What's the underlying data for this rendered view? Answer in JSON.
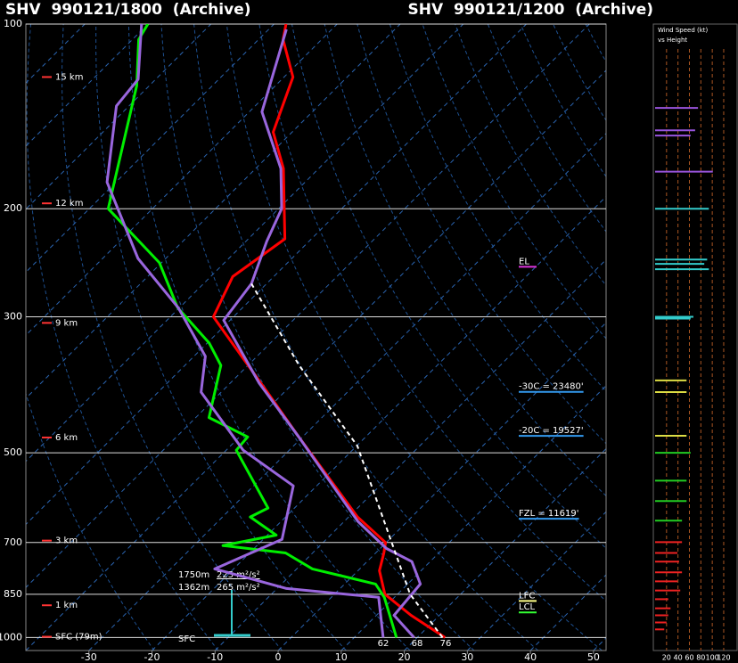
{
  "chart_data": {
    "type": "skewt",
    "title": "SHV  990121/1800  (Archive)",
    "subtitle": "SHV  990121/1200  (Archive)",
    "title_color": "#ffffff",
    "subtitle_color": "#9966dd",
    "xlim": [
      -40,
      52
    ],
    "xticks": [
      -30,
      -20,
      -10,
      0,
      10,
      20,
      30,
      40,
      50
    ],
    "ylim": [
      1050,
      100
    ],
    "yticks": [
      100,
      200,
      300,
      500,
      700,
      850,
      1000
    ],
    "log_scale": true,
    "grid": true,
    "series": [
      {
        "color": "#ff0000",
        "width": 3,
        "pressure": [
          1000,
          920,
          850,
          778,
          728,
          700,
          636,
          471,
          398,
          300,
          258,
          224,
          200,
          172,
          150,
          122,
          106,
          100
        ],
        "values": [
          24.4,
          15.5,
          8,
          3.4,
          1.3,
          -0.1,
          -8.6,
          -30.6,
          -42.7,
          -63.2,
          -66.5,
          -64.2,
          -69.1,
          -75.6,
          -83,
          -88.6,
          -96.1,
          -98.1
        ]
      },
      {
        "color": "#00ee00",
        "width": 3,
        "pressure": [
          1000,
          860,
          818,
          773,
          728,
          708,
          681,
          636,
          615,
          495,
          471,
          438,
          360,
          331,
          290,
          245,
          200,
          178,
          126,
          106,
          100
        ],
        "values": [
          16.7,
          8.4,
          4.9,
          -7.5,
          -14.3,
          -25.4,
          -18.6,
          -25.6,
          -24.2,
          -38.4,
          -38.7,
          -47.9,
          -54.3,
          -59.7,
          -70.3,
          -80.3,
          -97,
          -100.8,
          -112,
          -119,
          -120
        ]
      },
      {
        "color": "#9966dd",
        "width": 3,
        "pressure": [
          1000,
          920,
          818,
          752,
          716,
          647,
          471,
          385,
          304,
          265,
          226,
          200,
          172,
          139,
          102
        ],
        "values": [
          19.5,
          12.8,
          12,
          7.1,
          1,
          -7.8,
          -30.6,
          -45.4,
          -61,
          -62.4,
          -66.7,
          -69.5,
          -76,
          -88,
          -97.2
        ]
      },
      {
        "color": "#9966dd",
        "width": 3,
        "pressure": [
          1000,
          860,
          832,
          773,
          692,
          566,
          495,
          398,
          348,
          290,
          241,
          181,
          136,
          123,
          100
        ],
        "values": [
          14.6,
          7.5,
          -8.5,
          -23,
          -17,
          -23.7,
          -37.3,
          -53.2,
          -58.2,
          -70.2,
          -84.4,
          -101.4,
          -112,
          -112.8,
          -121
        ]
      },
      {
        "color": "#ffffff",
        "width": 2,
        "dashed": true,
        "pressure": [
          1000,
          850,
          487,
          360,
          265
        ],
        "values": [
          24,
          12,
          -19.9,
          -41.9,
          -62.4
        ]
      }
    ],
    "height_labels": {
      "labels": [
        "15 km",
        "12 km",
        "9 km",
        "6 km",
        "3 km",
        "1 km",
        "SFC (79m)"
      ],
      "pressure": [
        122,
        196,
        307,
        472,
        695,
        886,
        997
      ],
      "color": "#ff3333"
    },
    "annotations": [
      {
        "text": "EL",
        "pressure": 247,
        "color": "#dd33dd"
      },
      {
        "text": "-30C = 23480'",
        "pressure": 395,
        "color": "#3399ee"
      },
      {
        "text": "-20C = 19527'",
        "pressure": 466,
        "color": "#3399ee"
      },
      {
        "text": "FZL = 11619'",
        "pressure": 636,
        "color": "#3399ee"
      },
      {
        "text": "LFC",
        "pressure": 866,
        "color": "#ffff88"
      },
      {
        "text": "LCL",
        "pressure": 904,
        "color": "#33ff33"
      }
    ],
    "helicity": [
      {
        "height": "1750m",
        "value": "225 m²/s²"
      },
      {
        "height": "1362m",
        "value": "265 m²/s²"
      }
    ],
    "sfc_label": "SFC",
    "surface_labels": {
      "values": [
        62,
        68,
        76
      ],
      "colors": [
        "#00ee00",
        "#9966dd",
        "#ff3333"
      ]
    },
    "wind_panel": {
      "title": "Wind Speed (kt)",
      "subtitle": "vs Height",
      "xlim": [
        0,
        145
      ],
      "xticks": [
        20,
        40,
        60,
        80,
        100,
        120
      ],
      "pressure": [
        137,
        149,
        152,
        174,
        200,
        242,
        246,
        251,
        300,
        302,
        381,
        398,
        469,
        500,
        555,
        599,
        645,
        699,
        728,
        752,
        783,
        810,
        838,
        866,
        896,
        920,
        945,
        970
      ],
      "values": [
        75,
        70,
        62,
        101,
        94,
        91,
        86,
        94,
        67,
        62,
        55,
        55,
        55,
        62,
        55,
        55,
        47,
        47,
        39,
        42,
        47,
        39,
        44,
        23,
        27,
        23,
        20,
        16
      ],
      "colors": [
        "#9955dd",
        "#9955dd",
        "#9955dd",
        "#9955dd",
        "#33cccc",
        "#33cccc",
        "#33cccc",
        "#33cccc",
        "#33cccc",
        "#33cccc",
        "#dddd44",
        "#dddd44",
        "#dddd44",
        "#22cc22",
        "#22cc22",
        "#22cc22",
        "#22cc22",
        "#ee2222",
        "#ee2222",
        "#ee2222",
        "#ee2222",
        "#ee2222",
        "#ee2222",
        "#ee2222",
        "#ee2222",
        "#ee2222",
        "#ee2222",
        "#ee2222"
      ]
    }
  }
}
